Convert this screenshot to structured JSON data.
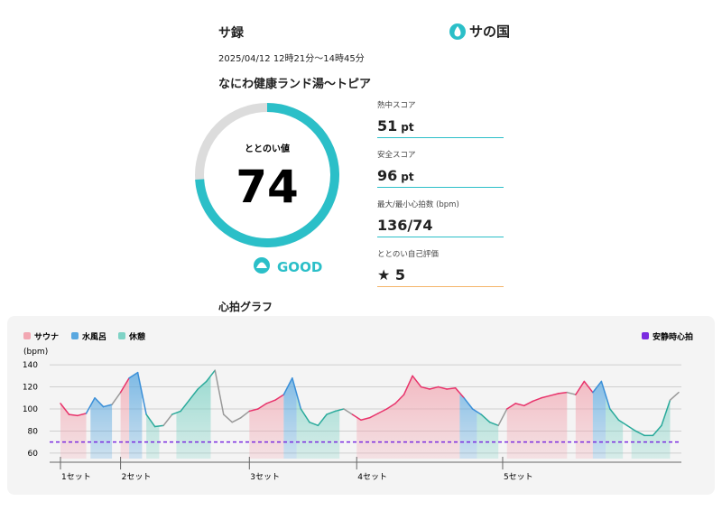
{
  "header": {
    "title": "サ録",
    "logo": "サの国"
  },
  "record": {
    "datetime": "2025/04/12 12時21分〜14時45分",
    "venue": "なにわ健康ランド湯〜トピア"
  },
  "totonoi": {
    "label": "ととのい値",
    "value": 74,
    "lim": [
      0,
      100
    ],
    "rating": "GOOD",
    "color": "#2bbfc8"
  },
  "stats": [
    {
      "label": "熱中スコア",
      "value": 51,
      "unit": "pt",
      "color": "#2bbfc8"
    },
    {
      "label": "安全スコア",
      "value": 96,
      "unit": "pt",
      "color": "#2bbfc8"
    },
    {
      "label": "最大/最小心拍数 (bpm)",
      "value": "136/74",
      "color": "#2bbfc8"
    },
    {
      "label": "ととのい自己評価",
      "value": 5,
      "color": "#f5b56a"
    }
  ],
  "section_title": "心拍グラフ",
  "chart_data": {
    "type": "line",
    "y_label": "(bpm)",
    "x": [
      0,
      2,
      4,
      6,
      8,
      10,
      12,
      14,
      16,
      18,
      20,
      22,
      24,
      26,
      28,
      30,
      32,
      34,
      36,
      38,
      40,
      42,
      44,
      46,
      48,
      50,
      52,
      54,
      56,
      58,
      60,
      62,
      64,
      66,
      68,
      70,
      72,
      74,
      76,
      78,
      80,
      82,
      84,
      86,
      88,
      90,
      92,
      94,
      96,
      98,
      100,
      102,
      104,
      106,
      108,
      110,
      112,
      114,
      116,
      118,
      120,
      122,
      124,
      126,
      128,
      130,
      132,
      134,
      136,
      138,
      140,
      142,
      144
    ],
    "values": [
      105,
      95,
      94,
      96,
      110,
      102,
      104,
      115,
      128,
      133,
      95,
      84,
      85,
      95,
      98,
      108,
      118,
      125,
      135,
      95,
      88,
      92,
      98,
      100,
      105,
      108,
      113,
      128,
      100,
      88,
      85,
      95,
      98,
      100,
      95,
      90,
      92,
      96,
      100,
      105,
      113,
      130,
      120,
      118,
      120,
      118,
      119,
      110,
      100,
      95,
      88,
      85,
      100,
      105,
      103,
      107,
      110,
      112,
      114,
      115,
      113,
      125,
      115,
      125,
      100,
      90,
      85,
      80,
      76,
      76,
      85,
      108,
      115
    ],
    "xlim": [
      0,
      144
    ],
    "ylim": [
      55,
      145
    ],
    "yticks": [
      140,
      120,
      100,
      80,
      60
    ],
    "grid": true,
    "other_color": "#999999",
    "phases": [
      {
        "name": "サウナ",
        "color": "#f2a7b2",
        "line_color": "#e8336b"
      },
      {
        "name": "水風呂",
        "color": "#5aa8e0",
        "line_color": "#3a8fd8"
      },
      {
        "name": "休憩",
        "color": "#7fd3c6",
        "line_color": "#2aaa9b"
      }
    ],
    "segments": [
      {
        "phase": 0,
        "x": [
          0,
          6
        ]
      },
      {
        "phase": 1,
        "x": [
          7,
          12
        ]
      },
      {
        "phase": 0,
        "x": [
          14,
          16
        ]
      },
      {
        "phase": 1,
        "x": [
          16,
          19
        ]
      },
      {
        "phase": 2,
        "x": [
          20,
          23
        ]
      },
      {
        "phase": 2,
        "x": [
          27,
          35
        ]
      },
      {
        "phase": 0,
        "x": [
          44,
          52
        ]
      },
      {
        "phase": 1,
        "x": [
          52,
          55
        ]
      },
      {
        "phase": 2,
        "x": [
          55,
          65
        ]
      },
      {
        "phase": 0,
        "x": [
          69,
          93
        ]
      },
      {
        "phase": 1,
        "x": [
          93,
          97
        ]
      },
      {
        "phase": 2,
        "x": [
          97,
          102
        ]
      },
      {
        "phase": 0,
        "x": [
          104,
          118
        ]
      },
      {
        "phase": 0,
        "x": [
          120,
          124
        ]
      },
      {
        "phase": 1,
        "x": [
          124,
          127
        ]
      },
      {
        "phase": 2,
        "x": [
          127,
          131
        ]
      },
      {
        "phase": 2,
        "x": [
          133,
          142
        ]
      }
    ],
    "resting": {
      "name": "安静時心拍",
      "value": 70,
      "color": "#7b2be0"
    },
    "set_markers": [
      {
        "label": "1セット",
        "x": 0
      },
      {
        "label": "2セット",
        "x": 14
      },
      {
        "label": "3セット",
        "x": 44
      },
      {
        "label": "4セット",
        "x": 69
      },
      {
        "label": "5セット",
        "x": 103
      }
    ]
  }
}
